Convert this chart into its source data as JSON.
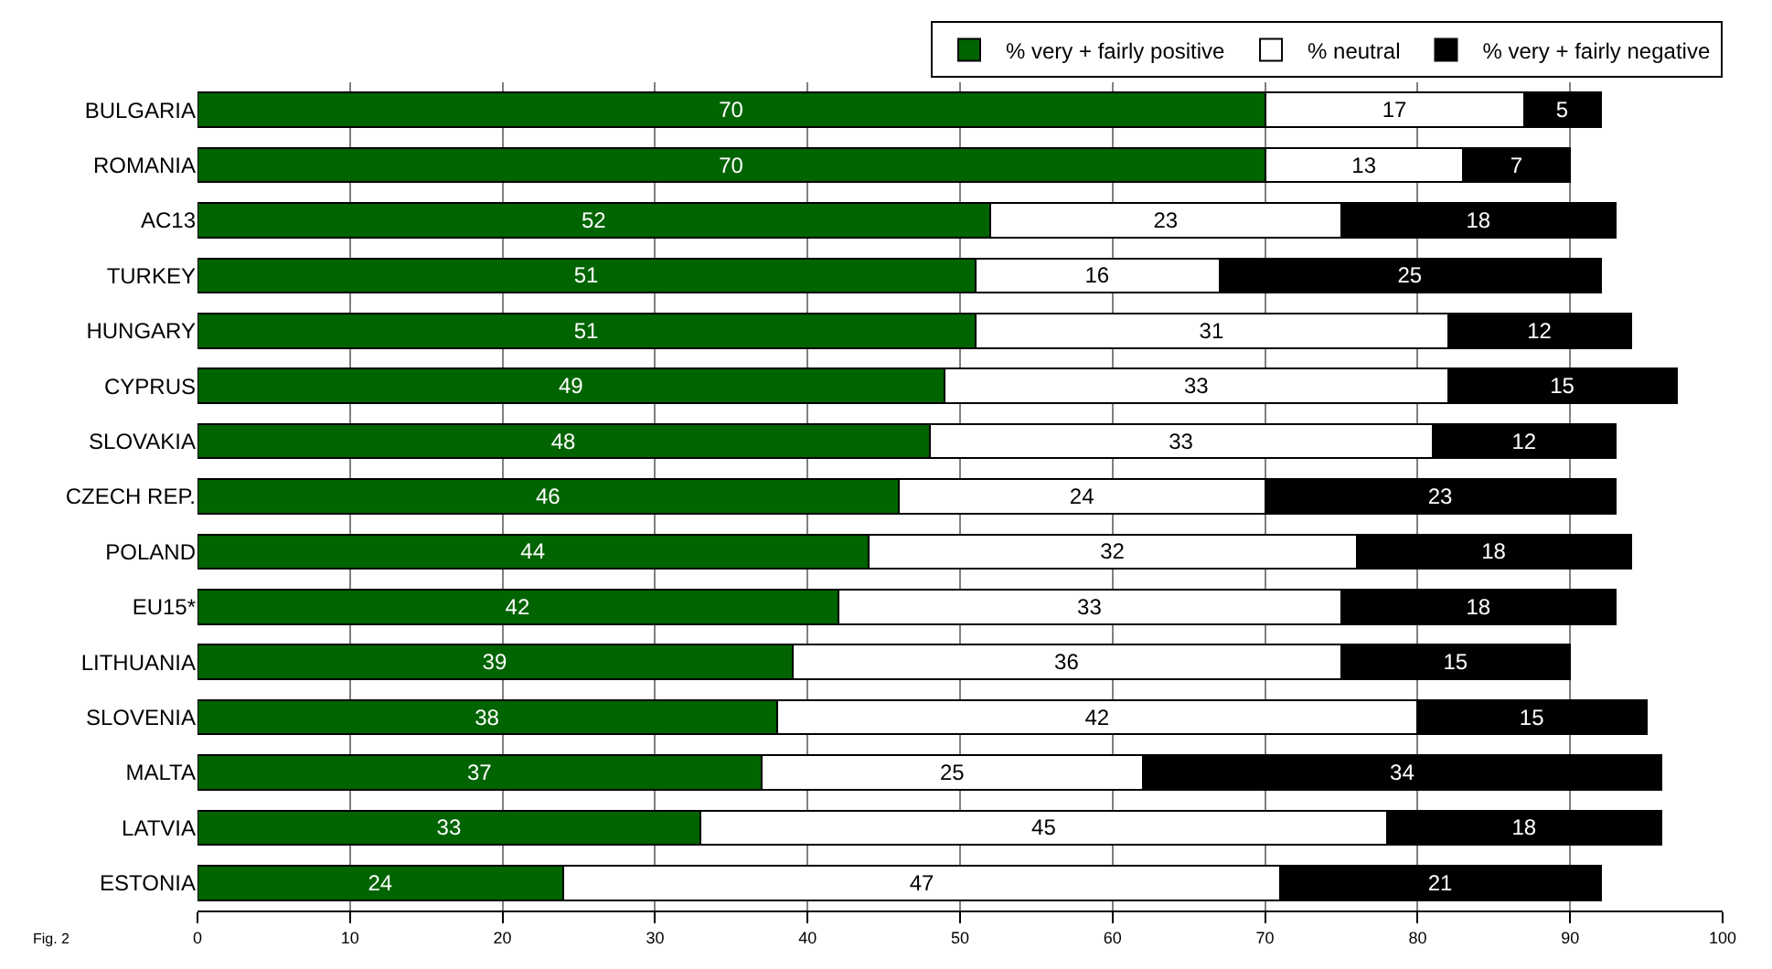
{
  "chart_data": {
    "type": "bar",
    "orientation": "horizontal",
    "stacked": true,
    "data_labels": true,
    "categories": [
      "BULGARIA",
      "ROMANIA",
      "AC13",
      "TURKEY",
      "HUNGARY",
      "CYPRUS",
      "SLOVAKIA",
      "CZECH REP.",
      "POLAND",
      "EU15*",
      "LITHUANIA",
      "SLOVENIA",
      "MALTA",
      "LATVIA",
      "ESTONIA"
    ],
    "series": [
      {
        "name": "% very + fairly positive",
        "color": "#006400",
        "values": [
          70,
          70,
          52,
          51,
          51,
          49,
          48,
          46,
          44,
          42,
          39,
          38,
          37,
          33,
          24
        ]
      },
      {
        "name": "% neutral",
        "color": "#ffffff",
        "values": [
          17,
          13,
          23,
          16,
          31,
          33,
          33,
          24,
          32,
          33,
          36,
          42,
          25,
          45,
          47
        ]
      },
      {
        "name": "% very + fairly negative",
        "color": "#000000",
        "values": [
          5,
          7,
          18,
          25,
          12,
          15,
          12,
          23,
          18,
          18,
          15,
          15,
          34,
          18,
          21
        ]
      }
    ],
    "xlim": [
      0,
      100
    ],
    "xticks": [
      0,
      10,
      20,
      30,
      40,
      50,
      60,
      70,
      80,
      90,
      100
    ],
    "grid": "x",
    "legend": "top right",
    "annotations": [
      "Fig. 2"
    ]
  }
}
